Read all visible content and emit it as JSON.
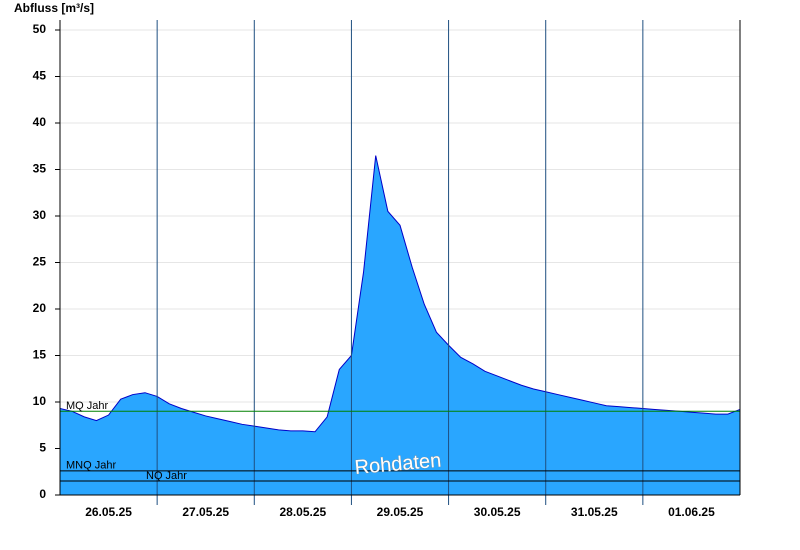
{
  "chart_data": {
    "type": "area",
    "y_label": "Abfluss [m³/s]",
    "watermark": "Rohdaten",
    "categories": [
      null,
      null,
      null,
      null,
      "26.05.25",
      null,
      null,
      null,
      null,
      null,
      null,
      null,
      "27.05.25",
      null,
      null,
      null,
      null,
      null,
      null,
      null,
      "28.05.25",
      null,
      null,
      null,
      null,
      null,
      null,
      null,
      "29.05.25",
      null,
      null,
      null,
      null,
      null,
      null,
      null,
      "30.05.25",
      null,
      null,
      null,
      null,
      null,
      null,
      null,
      "31.05.25",
      null,
      null,
      null,
      null,
      null,
      null,
      null,
      "01.06.25",
      null,
      null,
      null,
      null
    ],
    "series": [
      {
        "color": "#29a6ff",
        "line_color": "#0000c8",
        "values": [
          9.3,
          9.0,
          8.4,
          8.0,
          8.6,
          10.3,
          10.8,
          11.0,
          10.6,
          9.8,
          9.3,
          8.9,
          8.5,
          8.2,
          7.9,
          7.6,
          7.4,
          7.2,
          7.0,
          6.9,
          6.9,
          6.8,
          8.4,
          13.5,
          15.0,
          24.0,
          36.5,
          30.5,
          29.0,
          24.5,
          20.5,
          17.5,
          16.1,
          14.8,
          14.1,
          13.3,
          12.8,
          12.3,
          11.8,
          11.4,
          11.1,
          10.8,
          10.5,
          10.2,
          9.9,
          9.6,
          9.5,
          9.4,
          9.3,
          9.2,
          9.1,
          9.0,
          8.9,
          8.8,
          8.7,
          8.7,
          9.2
        ]
      }
    ],
    "reference_lines": [
      {
        "label": "MQ Jahr",
        "value": 9.0,
        "color": "#008000"
      },
      {
        "label": "MNQ Jahr",
        "value": 2.6,
        "color": "#000000"
      },
      {
        "label": "NQ Jahr",
        "value": 1.5,
        "color": "#000000"
      }
    ],
    "ylim": [
      0,
      50
    ],
    "yticks": [
      0,
      5,
      10,
      15,
      20,
      25,
      30,
      35,
      40,
      45,
      50
    ],
    "grid": true
  }
}
